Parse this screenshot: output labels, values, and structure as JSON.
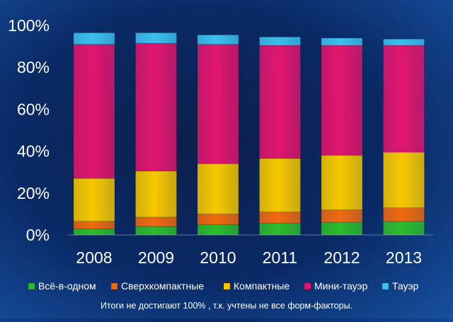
{
  "colors": {
    "all_in_one": "#2dbb2d",
    "ultra_compact": "#f06a10",
    "compact": "#f7c800",
    "mini_tower": "#e0166e",
    "tower": "#3cc0ee"
  },
  "chart_data": {
    "type": "bar",
    "stacked": true,
    "categories": [
      "2008",
      "2009",
      "2010",
      "2011",
      "2012",
      "2013"
    ],
    "ylim": [
      0,
      100
    ],
    "yticks": [
      "0%",
      "20%",
      "40%",
      "60%",
      "80%",
      "100%"
    ],
    "ytick_values": [
      0,
      20,
      40,
      60,
      80,
      100
    ],
    "grid": false,
    "legend_position": "bottom",
    "series": [
      {
        "name": "Всё-в-одном",
        "key": "all_in_one",
        "values": [
          3,
          4,
          5,
          5.5,
          6,
          6.5
        ]
      },
      {
        "name": "Сверхкомпактные",
        "key": "ultra_compact",
        "values": [
          3.5,
          4.5,
          5,
          5.5,
          6,
          6.5
        ]
      },
      {
        "name": "Компактные",
        "key": "compact",
        "values": [
          20.5,
          22,
          24,
          25.5,
          26,
          26.5
        ]
      },
      {
        "name": "Мини-тауэр",
        "key": "mini_tower",
        "values": [
          64,
          61,
          57,
          54,
          52.5,
          51
        ]
      },
      {
        "name": "Тауэр",
        "key": "tower",
        "values": [
          5.5,
          5,
          4.5,
          4,
          3.5,
          3
        ]
      }
    ]
  },
  "footnote": "Итоги не достигают 100% , т.к. учтены не все форм-факторы."
}
